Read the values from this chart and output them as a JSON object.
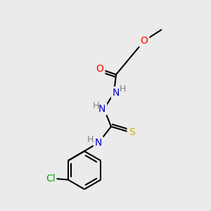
{
  "bg_color": "#ebebeb",
  "atom_colors": {
    "O": "#ff0000",
    "N": "#0000cc",
    "S": "#ccaa00",
    "Cl": "#00aa00",
    "C": "#000000",
    "H": "#808080"
  },
  "bond_color": "#000000",
  "bond_width": 1.5,
  "font_size_atom": 10,
  "font_size_H": 9,
  "figsize": [
    3.0,
    3.0
  ],
  "dpi": 100
}
